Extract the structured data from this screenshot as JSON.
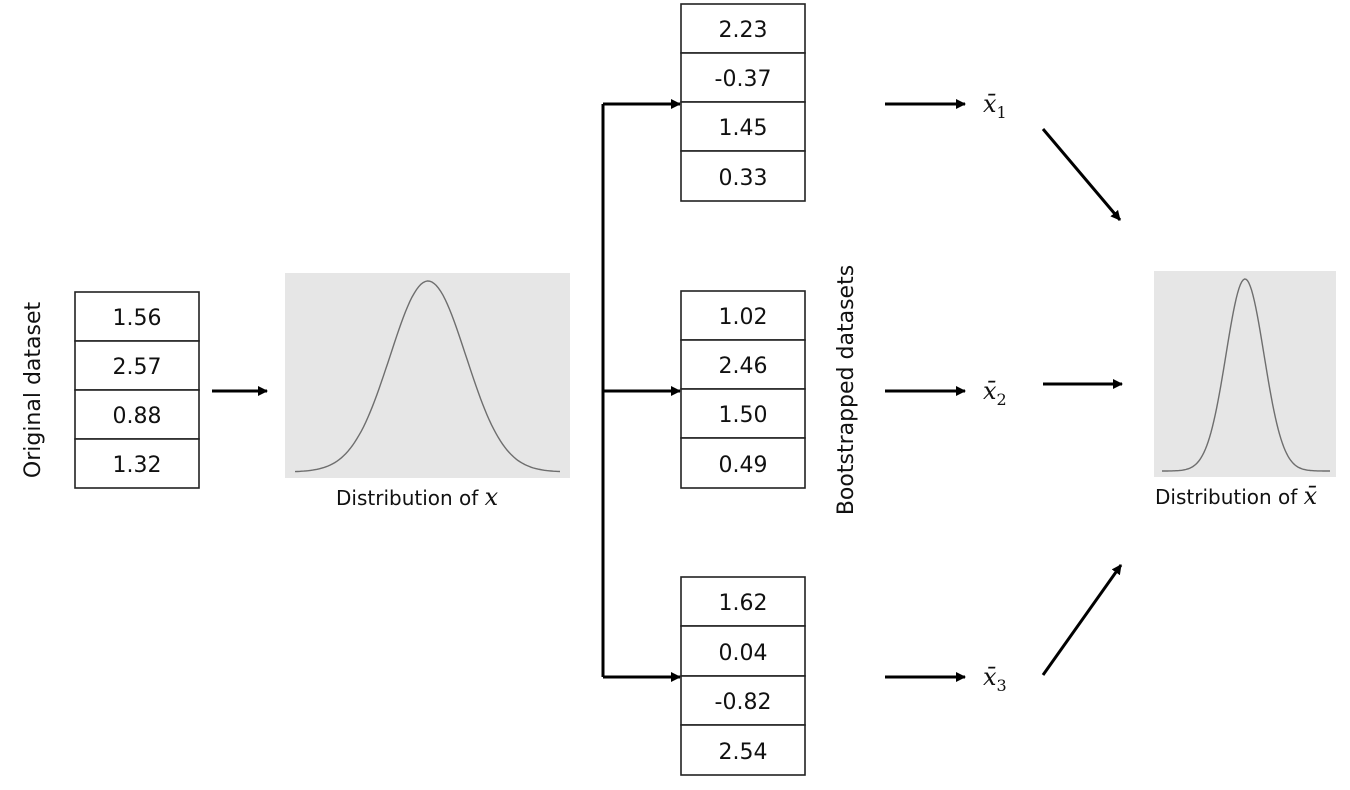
{
  "original": {
    "label": "Original dataset",
    "values": [
      "1.56",
      "2.57",
      "0.88",
      "1.32"
    ]
  },
  "distribution_x": {
    "caption_prefix": "Distribution of ",
    "caption_symbol": "x"
  },
  "bootstrap": {
    "label": "Bootstrapped datasets",
    "datasets": [
      {
        "values": [
          "2.23",
          "-0.37",
          "1.45",
          "0.33"
        ],
        "mean_symbol": "x̄",
        "mean_sub": "1"
      },
      {
        "values": [
          "1.02",
          "2.46",
          "1.50",
          "0.49"
        ],
        "mean_symbol": "x̄",
        "mean_sub": "2"
      },
      {
        "values": [
          "1.62",
          "0.04",
          "-0.82",
          "2.54"
        ],
        "mean_symbol": "x̄",
        "mean_sub": "3"
      }
    ]
  },
  "distribution_xbar": {
    "caption_prefix": "Distribution of ",
    "caption_symbol": "x̄"
  }
}
